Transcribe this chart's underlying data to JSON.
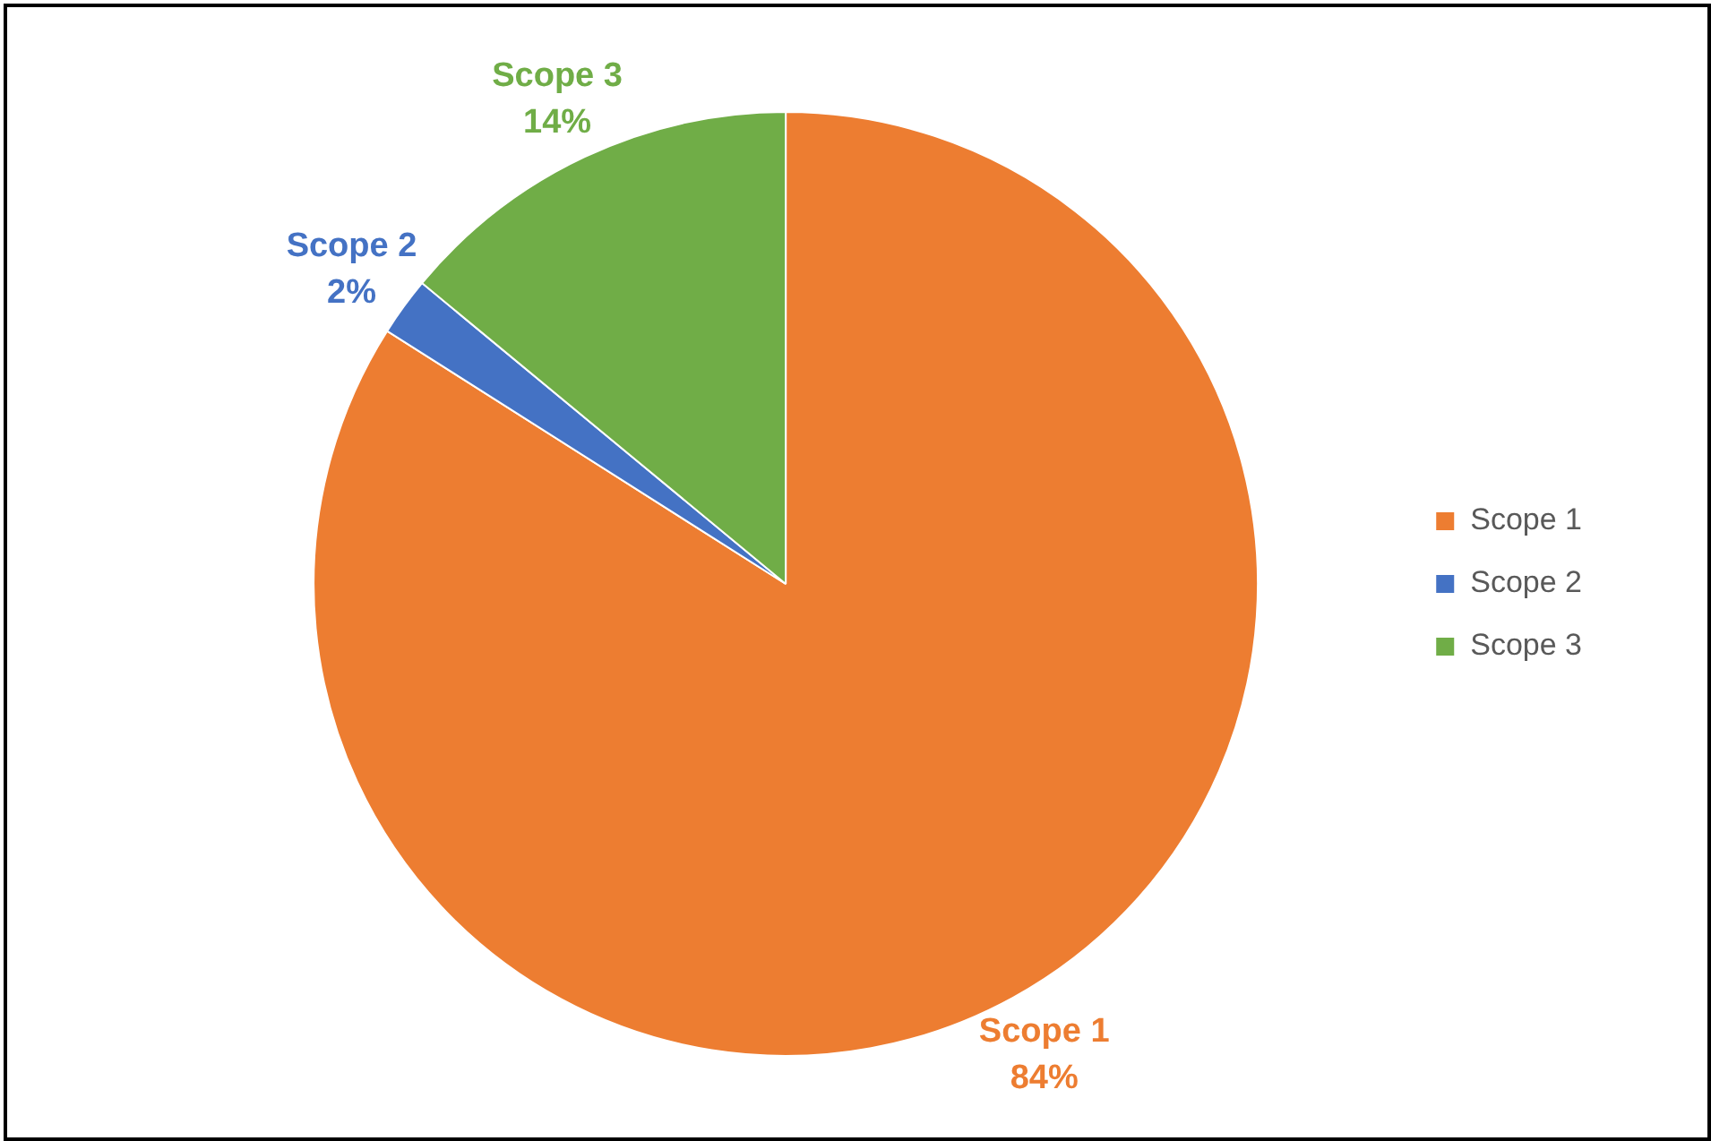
{
  "chart_data": {
    "type": "pie",
    "categories": [
      "Scope 1",
      "Scope 2",
      "Scope 3"
    ],
    "values": [
      84,
      2,
      14
    ],
    "colors": [
      "#ed7d31",
      "#4472c4",
      "#70ad47"
    ],
    "value_labels": [
      "84%",
      "2%",
      "14%"
    ],
    "legend": "right"
  }
}
